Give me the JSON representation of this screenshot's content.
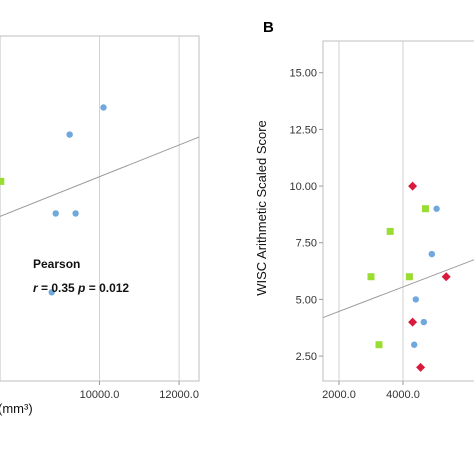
{
  "chart_data": [
    {
      "type": "scatter",
      "title": "",
      "xlabel": "(mm³)",
      "ylabel": "",
      "xlim": [
        7500,
        12500
      ],
      "ylim": [
        2.2,
        16.2
      ],
      "x_ticks": [
        10000.0,
        12000.0
      ],
      "x_tick_labels": [
        "10000.0",
        "12000.0"
      ],
      "grid": "vertical",
      "annotation": {
        "title": "Pearson",
        "r_symbol": "r",
        "r_text": " = 0.35 ",
        "p_symbol": "p",
        "p_text": " = 0.012"
      },
      "trend_line": {
        "x": [
          7500,
          12500
        ],
        "y": [
          8.88,
          12.1
        ]
      },
      "series": [
        {
          "marker": "circle",
          "color": "#6fa8dc",
          "points": [
            [
              10100,
              13.3
            ],
            [
              9250,
              12.2
            ],
            [
              8900,
              9.0
            ],
            [
              9400,
              9.0
            ],
            [
              8800,
              5.8
            ]
          ]
        },
        {
          "marker": "square",
          "color": "#99dd33",
          "points": [
            [
              7520,
              10.3
            ]
          ]
        }
      ]
    },
    {
      "type": "scatter",
      "title": "",
      "panel_label": "B",
      "xlabel": "",
      "ylabel": "WISC Arithmetic Scaled Score",
      "xlim": [
        1500,
        6500
      ],
      "ylim": [
        1.4,
        16.4
      ],
      "x_ticks": [
        2000.0,
        4000.0
      ],
      "x_tick_labels": [
        "2000.0",
        "4000.0"
      ],
      "y_ticks": [
        2.5,
        5.0,
        7.5,
        10.0,
        12.5,
        15.0
      ],
      "y_tick_labels": [
        "2.50",
        "5.00",
        "7.50",
        "10.00",
        "12.50",
        "15.00"
      ],
      "grid": "vertical",
      "trend_line": {
        "x": [
          1500,
          6500
        ],
        "y": [
          4.2,
          6.9
        ]
      },
      "series": [
        {
          "marker": "circle",
          "color": "#6fa8dc",
          "points": [
            [
              5050,
              9.0
            ],
            [
              4900,
              7.0
            ],
            [
              4400,
              5.0
            ],
            [
              4650,
              4.0
            ],
            [
              4350,
              3.0
            ]
          ]
        },
        {
          "marker": "square",
          "color": "#99dd33",
          "points": [
            [
              4700,
              9.0
            ],
            [
              3600,
              8.0
            ],
            [
              3000,
              6.0
            ],
            [
              4200,
              6.0
            ],
            [
              3250,
              3.0
            ]
          ]
        },
        {
          "marker": "diamond",
          "color": "#d81b3c",
          "points": [
            [
              4300,
              10.0
            ],
            [
              4300,
              4.0
            ],
            [
              4550,
              2.0
            ],
            [
              5350,
              6.0
            ]
          ]
        }
      ]
    }
  ]
}
